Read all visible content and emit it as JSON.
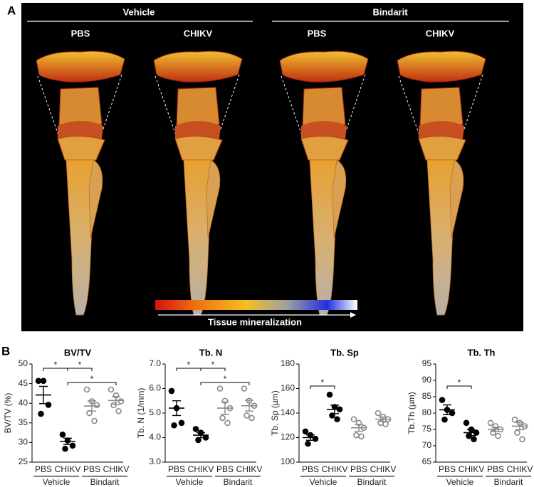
{
  "panel_a": {
    "label": "A",
    "groups": [
      "Vehicle",
      "Bindarit"
    ],
    "columns": [
      "PBS",
      "CHIKV",
      "PBS",
      "CHIKV"
    ],
    "colorbar_label": "Tissue mineralization"
  },
  "panel_b_label": "B",
  "chart_data": [
    {
      "type": "dot",
      "title": "BV/TV",
      "y_label": "BV/TV (%)",
      "categories": [
        "PBS",
        "CHIKV",
        "PBS",
        "CHIKV"
      ],
      "groups": [
        "Vehicle",
        "Bindarit"
      ],
      "colors": [
        "#000000",
        "#000000",
        "#888888",
        "#888888"
      ],
      "filled": [
        true,
        true,
        false,
        false
      ],
      "points": [
        [
          45.7,
          45.7,
          39.6,
          37.3
        ],
        [
          32.0,
          30.5,
          29.2,
          28.4
        ],
        [
          43.5,
          40.5,
          39.5,
          37.5,
          35.5
        ],
        [
          43.5,
          42.0,
          40.5,
          39.5,
          38.0
        ]
      ],
      "means": [
        42.1,
        30.3,
        39.3,
        40.7
      ],
      "sems": [
        2.2,
        0.8,
        1.3,
        1.0
      ],
      "ylim": [
        25,
        50
      ],
      "yticks": [
        25,
        30,
        35,
        40,
        45,
        50
      ],
      "significance": [
        {
          "from": 0,
          "to": 1,
          "label": "*"
        },
        {
          "from": 1,
          "to": 2,
          "label": "*"
        },
        {
          "from": 1,
          "to": 3,
          "label": "*"
        }
      ]
    },
    {
      "type": "dot",
      "title": "Tb. N",
      "y_label": "Tb. N (1/mm)",
      "categories": [
        "PBS",
        "CHIKV",
        "PBS",
        "CHIKV"
      ],
      "groups": [
        "Vehicle",
        "Bindarit"
      ],
      "colors": [
        "#000000",
        "#000000",
        "#888888",
        "#888888"
      ],
      "filled": [
        true,
        true,
        false,
        false
      ],
      "points": [
        [
          5.9,
          5.2,
          4.6,
          4.5
        ],
        [
          4.35,
          4.2,
          4.0,
          3.9
        ],
        [
          6.0,
          5.5,
          5.2,
          4.8,
          4.6
        ],
        [
          6.0,
          5.5,
          5.3,
          4.9,
          4.8
        ]
      ],
      "means": [
        5.2,
        4.1,
        5.2,
        5.3
      ],
      "sems": [
        0.3,
        0.1,
        0.25,
        0.22
      ],
      "ylim": [
        3,
        7
      ],
      "yticks": [
        {
          "value": 3,
          "label": "3.0"
        },
        {
          "value": 4,
          "label": "4.0"
        },
        {
          "value": 5,
          "label": "5.0"
        },
        {
          "value": 6,
          "label": "6.0"
        },
        {
          "value": 7,
          "label": "7.0"
        }
      ],
      "significance": [
        {
          "from": 0,
          "to": 1,
          "label": "*"
        },
        {
          "from": 1,
          "to": 2,
          "label": "*"
        },
        {
          "from": 1,
          "to": 3,
          "label": "*"
        }
      ]
    },
    {
      "type": "dot",
      "title": "Tb. Sp",
      "y_label": "Tb. Sp (µm)",
      "categories": [
        "PBS",
        "CHIKV",
        "PBS",
        "CHIKV"
      ],
      "groups": [
        "Vehicle",
        "Bindarit"
      ],
      "colors": [
        "#000000",
        "#000000",
        "#888888",
        "#888888"
      ],
      "filled": [
        true,
        true,
        false,
        false
      ],
      "points": [
        [
          125,
          122,
          119,
          115
        ],
        [
          155,
          145,
          143,
          138,
          135
        ],
        [
          135,
          132,
          128,
          122,
          121
        ],
        [
          140,
          137,
          135,
          132,
          131
        ]
      ],
      "means": [
        120,
        143,
        128,
        135
      ],
      "sems": [
        2.2,
        3.5,
        2.8,
        1.8
      ],
      "ylim": [
        100,
        180
      ],
      "yticks": [
        100,
        120,
        140,
        160,
        180
      ],
      "significance": [
        {
          "from": 0,
          "to": 1,
          "label": "*"
        }
      ]
    },
    {
      "type": "dot",
      "title": "Tb. Th",
      "y_label": "Tb.Th (µm)",
      "categories": [
        "PBS",
        "CHIKV",
        "PBS",
        "CHIKV"
      ],
      "groups": [
        "Vehicle",
        "Bindarit"
      ],
      "colors": [
        "#000000",
        "#000000",
        "#888888",
        "#888888"
      ],
      "filled": [
        true,
        true,
        false,
        false
      ],
      "points": [
        [
          84,
          81,
          80,
          78
        ],
        [
          77,
          75,
          74,
          73,
          72
        ],
        [
          77,
          76,
          75,
          74,
          73
        ],
        [
          78,
          77,
          76,
          74,
          72
        ]
      ],
      "means": [
        81,
        74,
        75,
        76
      ],
      "sems": [
        1.5,
        0.9,
        0.7,
        1.1
      ],
      "ylim": [
        65,
        95
      ],
      "yticks": [
        65,
        70,
        75,
        80,
        85,
        90,
        95
      ],
      "significance": [
        {
          "from": 0,
          "to": 1,
          "label": "*"
        }
      ]
    }
  ]
}
